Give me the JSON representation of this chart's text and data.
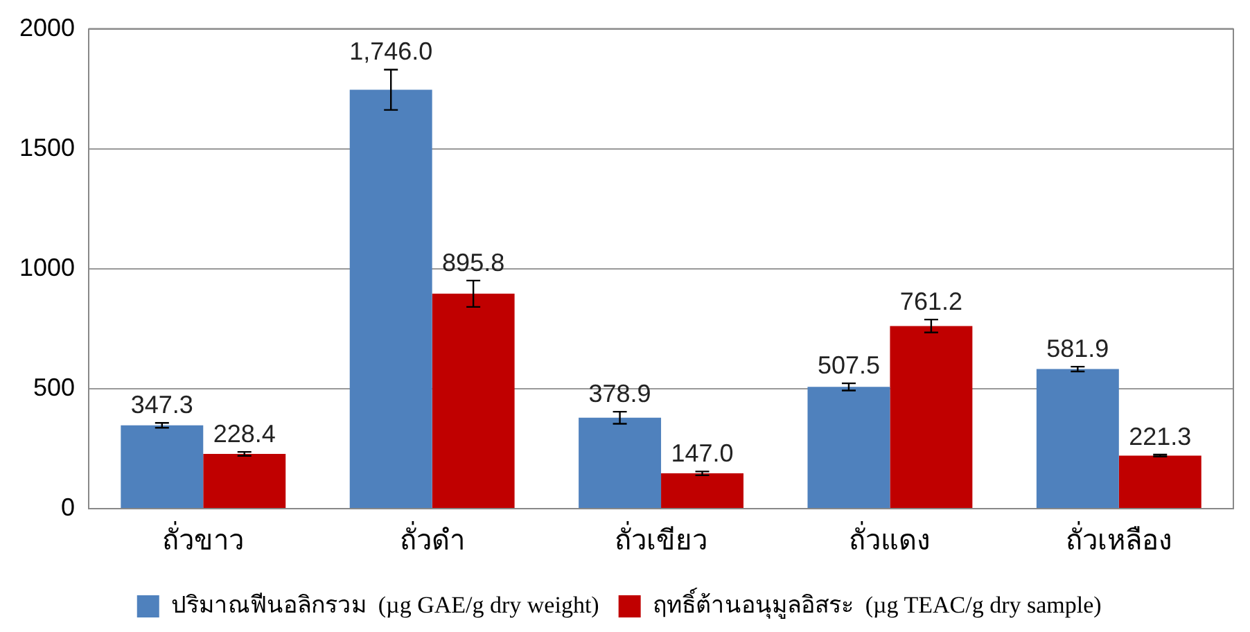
{
  "chart_data": {
    "type": "bar",
    "categories": [
      "ถั่วขาว",
      "ถั่วดำ",
      "ถั่วเขียว",
      "ถั่วแดง",
      "ถั่วเหลือง"
    ],
    "series": [
      {
        "name": "ปริมาณฟีนอลิกรวม  (µg GAE/g dry weight)",
        "color": "#4f81bd",
        "values": [
          347.3,
          1746.0,
          378.9,
          507.5,
          581.9
        ],
        "errors": [
          10,
          84,
          25,
          15,
          10
        ],
        "value_labels": [
          "347.3",
          "1,746.0",
          "378.9",
          "507.5",
          "581.9"
        ]
      },
      {
        "name": "ฤทธิ์ต้านอนุมูลอิสระ  (µg TEAC/g dry sample)",
        "color": "#c00000",
        "values": [
          228.4,
          895.8,
          147.0,
          761.2,
          221.3
        ],
        "errors": [
          8,
          55,
          8,
          27,
          4
        ],
        "value_labels": [
          "228.4",
          "895.8",
          "147.0",
          "761.2",
          "221.3"
        ]
      }
    ],
    "ylim": [
      0,
      2000
    ],
    "yticks": [
      0,
      500,
      1000,
      1500,
      2000
    ],
    "grid": "y",
    "legend": "bottom"
  }
}
